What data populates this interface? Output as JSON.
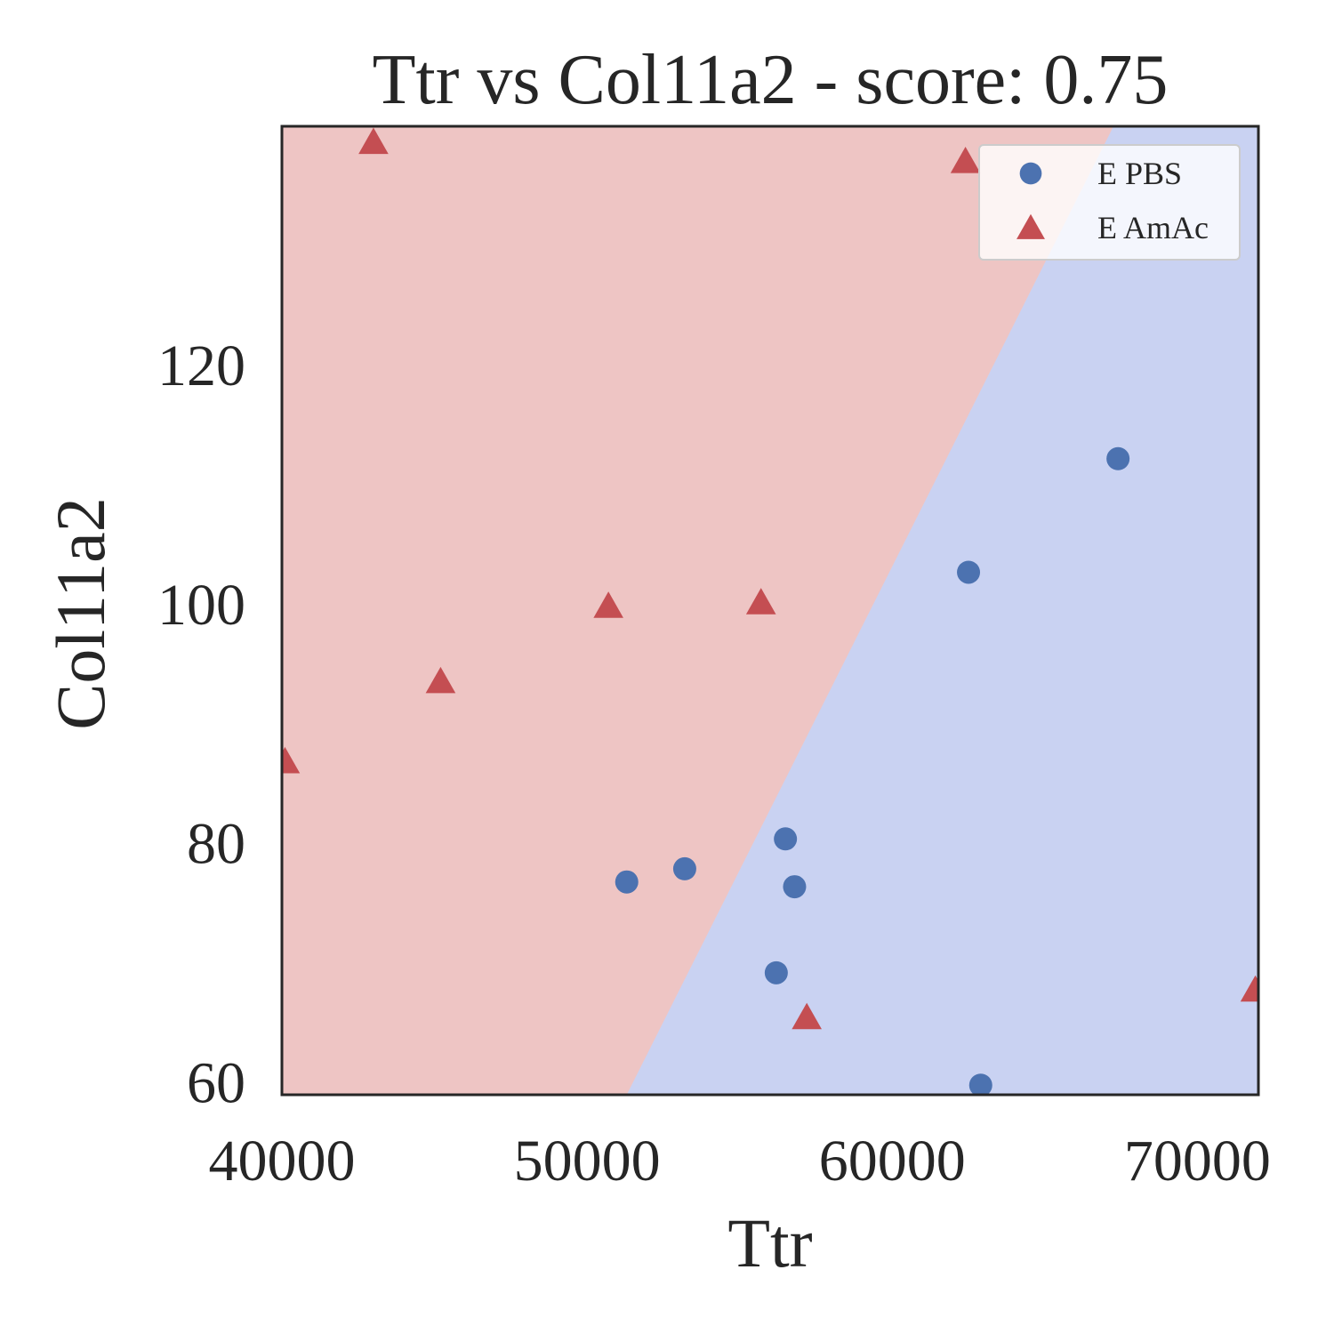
{
  "chart_data": {
    "type": "scatter",
    "title": "Ttr vs Col11a2 - score: 0.75",
    "xlabel": "Ttr",
    "ylabel": "Col11a2",
    "xlim": [
      40000,
      72000
    ],
    "ylim": [
      59,
      140
    ],
    "xticks": [
      40000,
      50000,
      60000,
      70000
    ],
    "yticks": [
      60,
      80,
      100,
      120
    ],
    "grid": false,
    "legend_position": "top-right",
    "decision_boundary": {
      "description": "linear classifier regions",
      "points": [
        [
          51300,
          59
        ],
        [
          67250,
          140
        ]
      ],
      "left_region_class": "E AmAc",
      "right_region_class": "E PBS",
      "left_region_color": "#eec5c4",
      "right_region_color": "#c9d2f2"
    },
    "series": [
      {
        "name": "E PBS",
        "marker": "circle",
        "color": "#4c72b0",
        "x": [
          51300,
          53200,
          56500,
          56800,
          56200,
          62500,
          62900,
          67400
        ],
        "y": [
          76.8,
          77.9,
          80.4,
          76.4,
          69.2,
          102.7,
          59.8,
          112.2
        ]
      },
      {
        "name": "E AmAc",
        "marker": "triangle",
        "color": "#c44e52",
        "x": [
          40100,
          43000,
          45200,
          50700,
          55700,
          62400,
          57200,
          71900
        ],
        "y": [
          86.9,
          138.7,
          93.6,
          99.9,
          100.2,
          137.1,
          65.5,
          67.8
        ]
      }
    ]
  }
}
